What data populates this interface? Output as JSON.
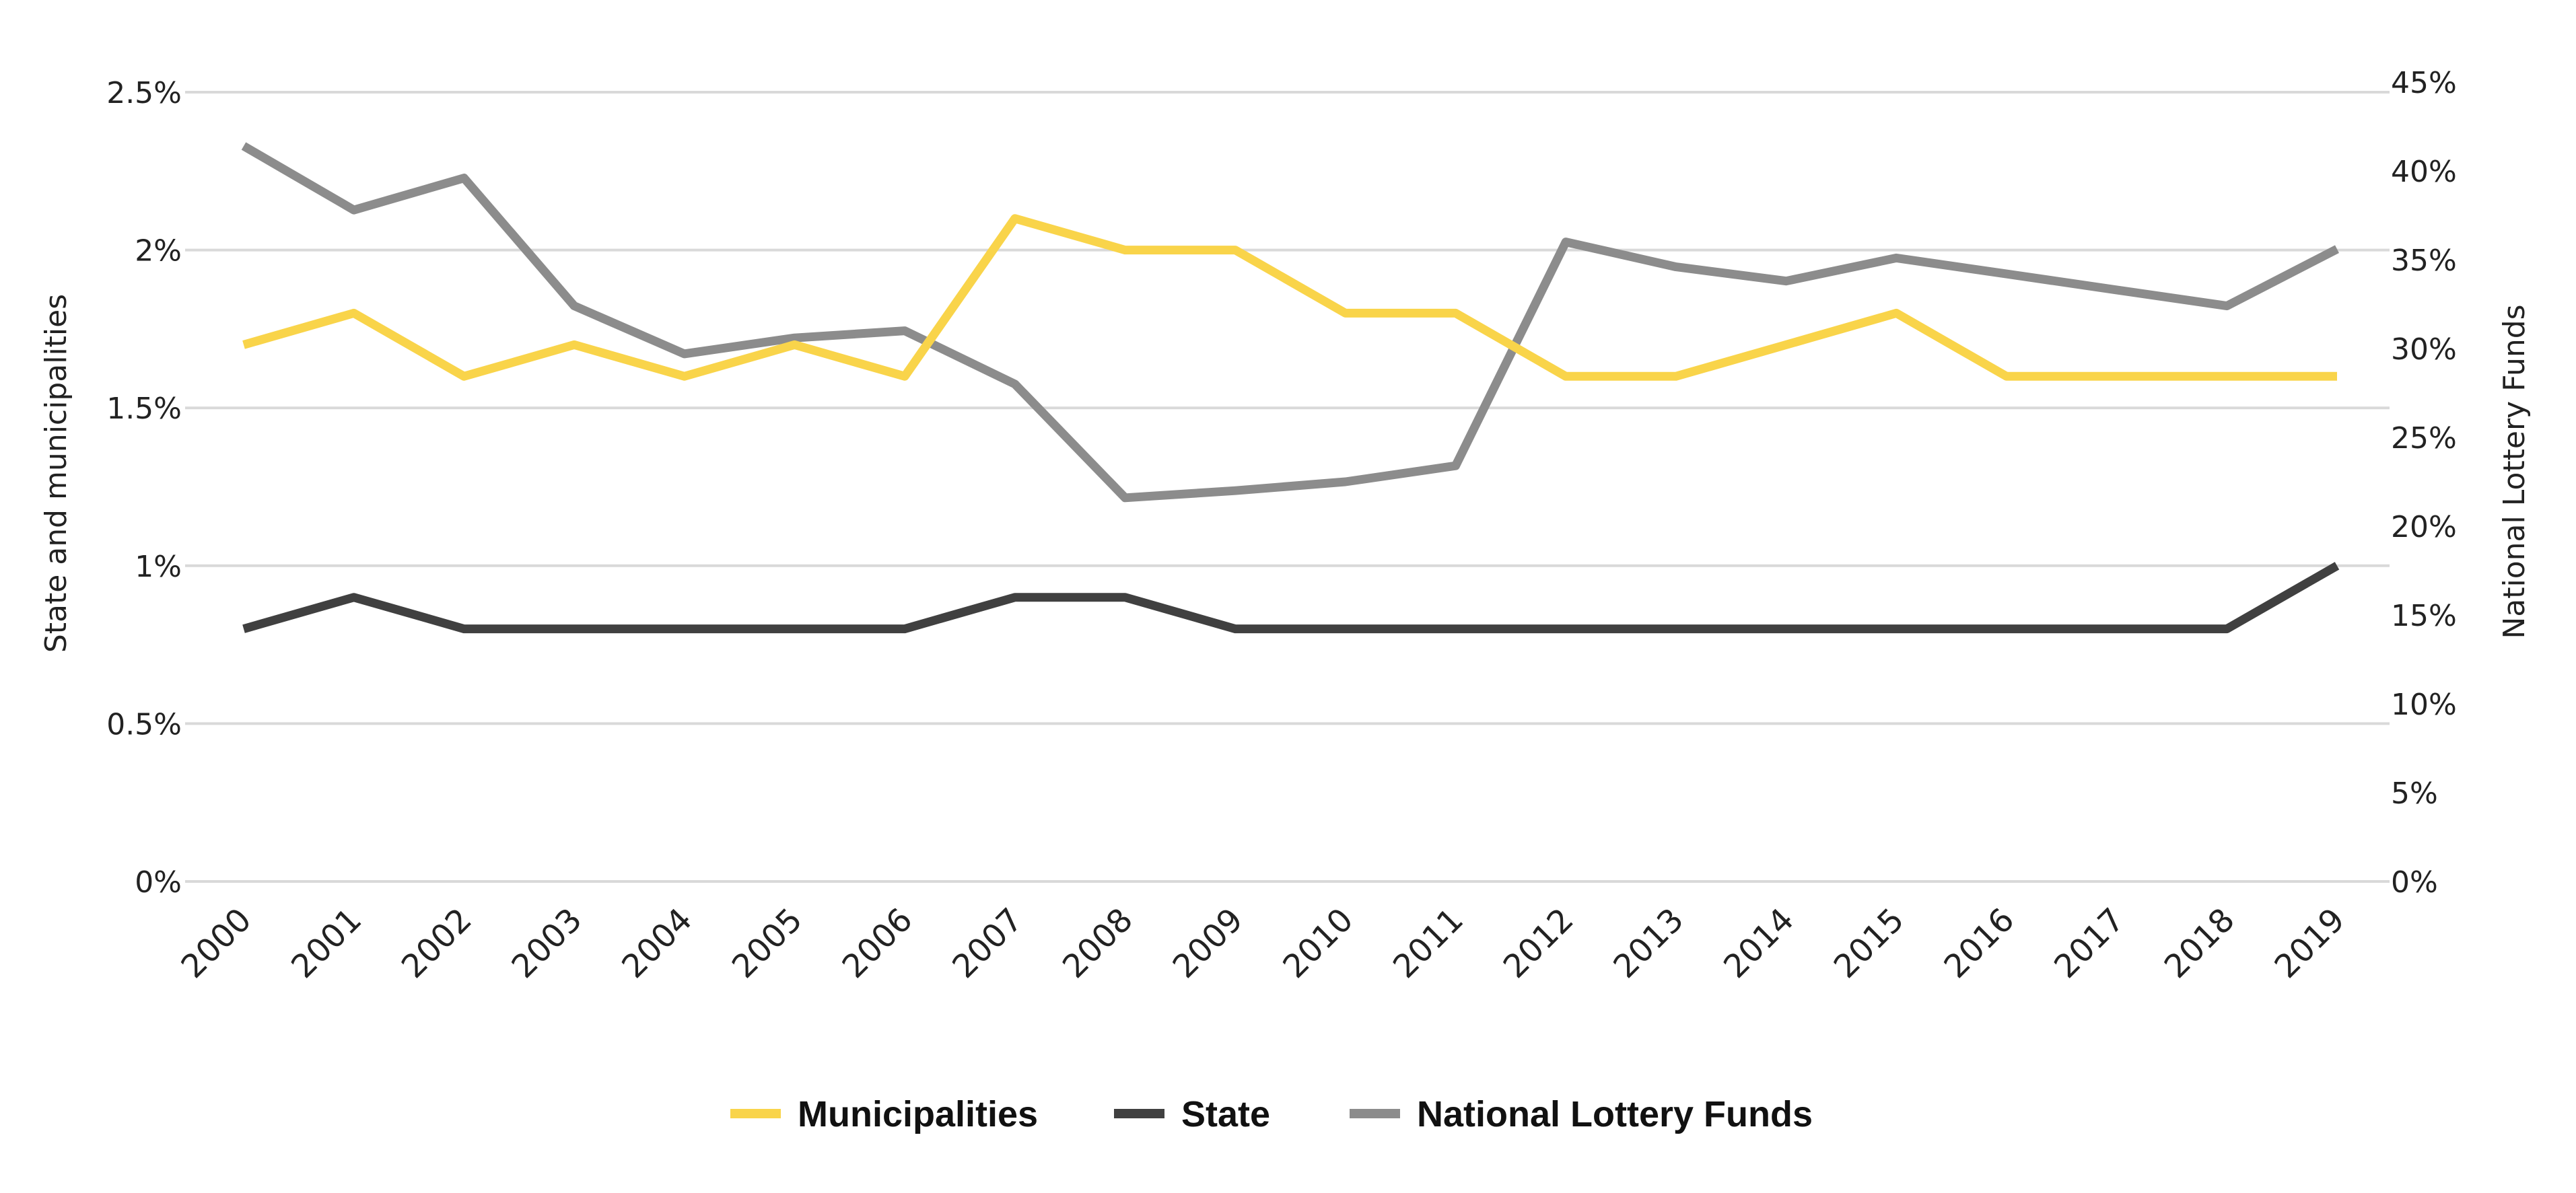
{
  "chart_data": {
    "type": "line",
    "x": [
      "2000",
      "2001",
      "2002",
      "2003",
      "2004",
      "2005",
      "2006",
      "2007",
      "2008",
      "2009",
      "2010",
      "2011",
      "2012",
      "2013",
      "2014",
      "2015",
      "2016",
      "2017",
      "2018",
      "2019"
    ],
    "y_left": {
      "label": "State and municipalities",
      "ylim": [
        0,
        2.5
      ],
      "ticks": [
        {
          "value": 0,
          "label": "0%"
        },
        {
          "value": 0.5,
          "label": "0.5%"
        },
        {
          "value": 1,
          "label": "1%"
        },
        {
          "value": 1.5,
          "label": "1.5%"
        },
        {
          "value": 2,
          "label": "2%"
        },
        {
          "value": 2.5,
          "label": "2.5%"
        }
      ]
    },
    "y_right": {
      "label": "National Lottery Funds",
      "ylim": [
        0,
        45
      ],
      "ticks": [
        {
          "value": 0,
          "label": "0%"
        },
        {
          "value": 5,
          "label": "5%"
        },
        {
          "value": 10,
          "label": "10%"
        },
        {
          "value": 15,
          "label": "15%"
        },
        {
          "value": 20,
          "label": "20%"
        },
        {
          "value": 25,
          "label": "25%"
        },
        {
          "value": 30,
          "label": "30%"
        },
        {
          "value": 35,
          "label": "35%"
        },
        {
          "value": 40,
          "label": "40%"
        },
        {
          "value": 45,
          "label": "45%"
        }
      ]
    },
    "grid": true,
    "legend_position": "bottom-center",
    "series": [
      {
        "name": "Municipalities",
        "axis": "left",
        "color": "#f9d44a",
        "values": [
          1.7,
          1.8,
          1.6,
          1.7,
          1.6,
          1.7,
          1.6,
          2.1,
          2.0,
          2.0,
          1.8,
          1.8,
          1.6,
          1.6,
          1.7,
          1.8,
          1.6,
          1.6,
          1.6,
          1.6
        ]
      },
      {
        "name": "State",
        "axis": "left",
        "color": "#404040",
        "values": [
          0.8,
          0.9,
          0.8,
          0.8,
          0.8,
          0.8,
          0.8,
          0.9,
          0.9,
          0.8,
          0.8,
          0.8,
          0.8,
          0.8,
          0.8,
          0.8,
          0.8,
          0.8,
          0.8,
          1.0
        ]
      },
      {
        "name": "National Lottery Funds",
        "axis": "right",
        "color": "#8c8c8c",
        "values": [
          41.4,
          37.8,
          39.6,
          32.4,
          29.7,
          30.6,
          31.0,
          28.0,
          21.6,
          22.0,
          22.5,
          23.4,
          36.0,
          34.6,
          33.8,
          35.1,
          34.2,
          33.3,
          32.4,
          35.6
        ]
      }
    ]
  }
}
